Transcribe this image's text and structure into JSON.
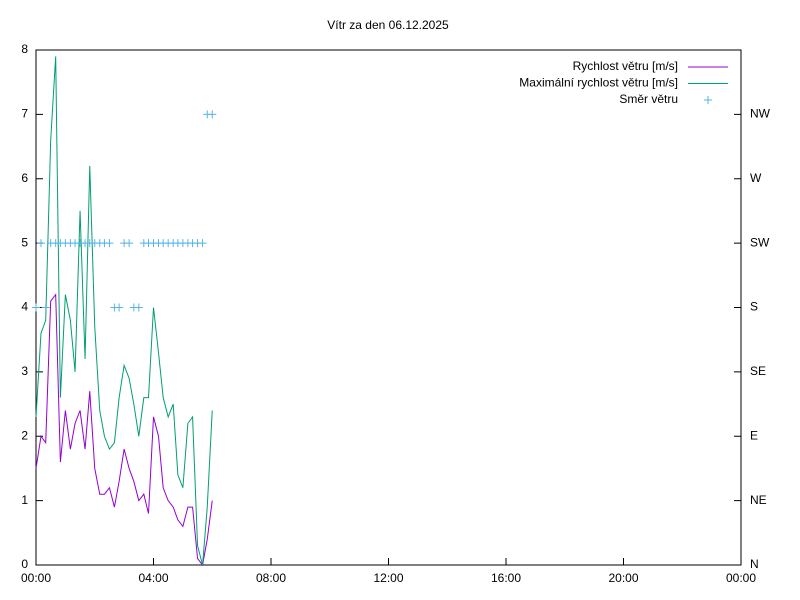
{
  "chart_data": {
    "type": "line",
    "title": "Vítr za den 06.12.2025",
    "x": [
      0,
      0.17,
      0.33,
      0.5,
      0.67,
      0.83,
      1.0,
      1.17,
      1.33,
      1.5,
      1.67,
      1.83,
      2.0,
      2.17,
      2.33,
      2.5,
      2.67,
      2.83,
      3.0,
      3.17,
      3.33,
      3.5,
      3.67,
      3.83,
      4.0,
      4.17,
      4.33,
      4.5,
      4.67,
      4.83,
      5.0,
      5.17,
      5.33,
      5.5,
      5.67,
      5.83,
      6.0
    ],
    "series": [
      {
        "name": "Rychlost větru [m/s]",
        "color": "#9400d3",
        "style": "line",
        "values": [
          1.5,
          2.0,
          1.9,
          4.1,
          4.2,
          1.6,
          2.4,
          1.8,
          2.2,
          2.4,
          1.8,
          2.7,
          1.5,
          1.1,
          1.1,
          1.2,
          0.9,
          1.3,
          1.8,
          1.5,
          1.3,
          1.0,
          1.1,
          0.8,
          2.3,
          2.0,
          1.2,
          1.0,
          0.9,
          0.7,
          0.6,
          0.9,
          0.9,
          0.1,
          0,
          0.4,
          1.0
        ]
      },
      {
        "name": "Maximální rychlost větru [m/s]",
        "color": "#009e73",
        "style": "line",
        "values": [
          2.3,
          3.6,
          3.8,
          6.6,
          7.9,
          2.6,
          4.2,
          3.8,
          3.0,
          5.5,
          3.2,
          6.2,
          3.7,
          2.4,
          2.0,
          1.8,
          1.9,
          2.6,
          3.1,
          2.9,
          2.5,
          2.0,
          2.6,
          2.6,
          4.0,
          3.3,
          2.6,
          2.3,
          2.5,
          1.4,
          1.2,
          2.2,
          2.3,
          0.3,
          0,
          0.9,
          2.4
        ]
      },
      {
        "name": "Směr větru",
        "color": "#56b4e9",
        "style": "points",
        "axis": "y2",
        "values": [
          4,
          5,
          4,
          5,
          5,
          5,
          5,
          5,
          5,
          5,
          5,
          5,
          5,
          5,
          5,
          5,
          4,
          4,
          5,
          5,
          4,
          4,
          5,
          5,
          5,
          5,
          5,
          5,
          5,
          5,
          5,
          5,
          5,
          5,
          5,
          7,
          7
        ]
      }
    ],
    "xlim": [
      0,
      24
    ],
    "xticks": [
      {
        "value": 0,
        "label": "00:00"
      },
      {
        "value": 4,
        "label": "04:00"
      },
      {
        "value": 8,
        "label": "08:00"
      },
      {
        "value": 12,
        "label": "12:00"
      },
      {
        "value": 16,
        "label": "16:00"
      },
      {
        "value": 20,
        "label": "20:00"
      },
      {
        "value": 24,
        "label": "00:00"
      }
    ],
    "ylim": [
      0,
      8
    ],
    "yticks": [
      0,
      1,
      2,
      3,
      4,
      5,
      6,
      7,
      8
    ],
    "y2lim": [
      0,
      8
    ],
    "y2ticks": [
      {
        "value": 0,
        "label": "N"
      },
      {
        "value": 1,
        "label": "NE"
      },
      {
        "value": 2,
        "label": "E"
      },
      {
        "value": 3,
        "label": "SE"
      },
      {
        "value": 4,
        "label": "S"
      },
      {
        "value": 5,
        "label": "SW"
      },
      {
        "value": 6,
        "label": "W"
      },
      {
        "value": 7,
        "label": "NW"
      }
    ],
    "legend": "top-right",
    "grid": false
  }
}
